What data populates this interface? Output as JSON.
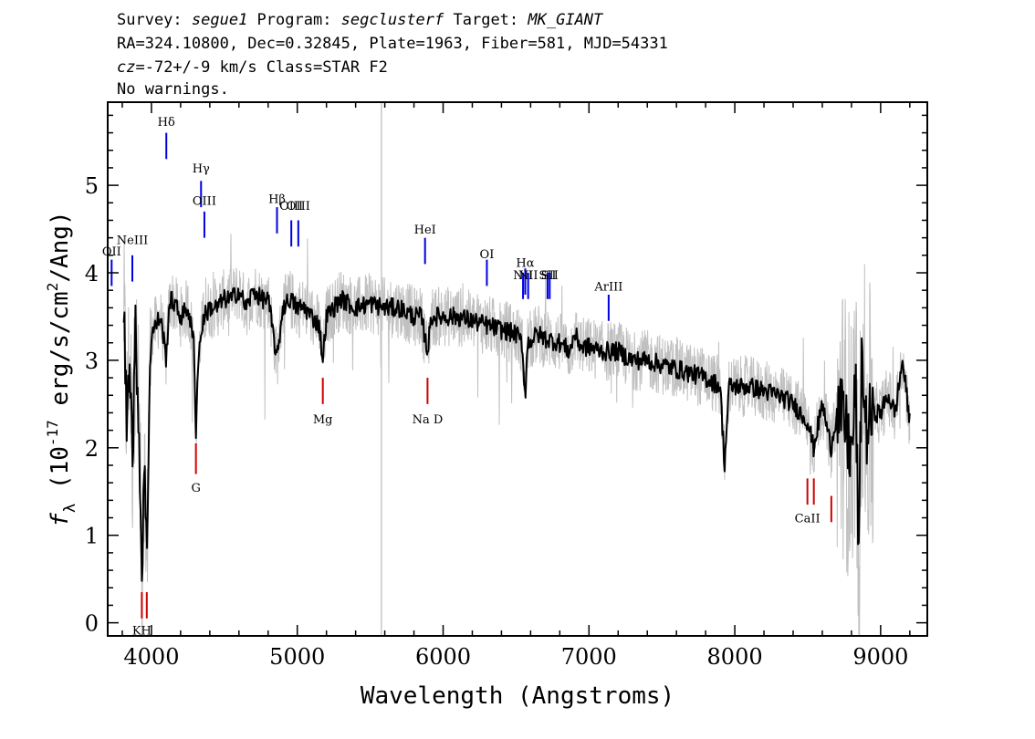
{
  "header": {
    "line1": {
      "survey_label": "Survey: ",
      "survey": "segue1",
      "program_label": " Program: ",
      "program": "segclusterf",
      "target_label": " Target: ",
      "target": "MK_GIANT"
    },
    "line2": "RA=324.10800, Dec=0.32845, Plate=1963, Fiber=581, MJD=54331",
    "line3": {
      "cz_label": "cz",
      "cz_value": "=-72+/-9",
      "rest": " km/s Class=STAR F2"
    },
    "line4": "No warnings."
  },
  "chart_data": {
    "type": "line",
    "xlabel": "Wavelength (Angstroms)",
    "ylabel_parts": {
      "symbol": "f",
      "sub": "λ",
      "open": " (10",
      "exp": "-17",
      "mid": " erg/s/cm",
      "exp2": "2",
      "close": "/Ang)"
    },
    "xlim": [
      3700,
      9320
    ],
    "ylim": [
      -0.15,
      5.95
    ],
    "x_ticks": [
      4000,
      5000,
      6000,
      7000,
      8000,
      9000
    ],
    "y_ticks": [
      0,
      1,
      2,
      3,
      4,
      5
    ],
    "sky_line_x": 5577,
    "smoothed_series": [
      [
        3810,
        3.6
      ],
      [
        3830,
        2.3
      ],
      [
        3850,
        3.2
      ],
      [
        3870,
        1.9
      ],
      [
        3890,
        3.3
      ],
      [
        3910,
        2.5
      ],
      [
        3935,
        0.5
      ],
      [
        3950,
        1.9
      ],
      [
        3968,
        0.7
      ],
      [
        3985,
        2.6
      ],
      [
        4000,
        3.3
      ],
      [
        4030,
        3.4
      ],
      [
        4060,
        3.5
      ],
      [
        4080,
        3.3
      ],
      [
        4101,
        3.0
      ],
      [
        4120,
        3.6
      ],
      [
        4140,
        3.7
      ],
      [
        4170,
        3.6
      ],
      [
        4200,
        3.5
      ],
      [
        4250,
        3.6
      ],
      [
        4290,
        3.2
      ],
      [
        4305,
        2.2
      ],
      [
        4320,
        3.0
      ],
      [
        4340,
        3.3
      ],
      [
        4360,
        3.5
      ],
      [
        4400,
        3.6
      ],
      [
        4450,
        3.6
      ],
      [
        4500,
        3.7
      ],
      [
        4550,
        3.7
      ],
      [
        4600,
        3.8
      ],
      [
        4650,
        3.6
      ],
      [
        4700,
        3.8
      ],
      [
        4750,
        3.7
      ],
      [
        4800,
        3.7
      ],
      [
        4861,
        3.0
      ],
      [
        4900,
        3.6
      ],
      [
        4950,
        3.7
      ],
      [
        5000,
        3.6
      ],
      [
        5050,
        3.6
      ],
      [
        5100,
        3.5
      ],
      [
        5150,
        3.4
      ],
      [
        5175,
        3.0
      ],
      [
        5200,
        3.5
      ],
      [
        5300,
        3.7
      ],
      [
        5400,
        3.6
      ],
      [
        5500,
        3.65
      ],
      [
        5600,
        3.6
      ],
      [
        5700,
        3.6
      ],
      [
        5800,
        3.5
      ],
      [
        5850,
        3.5
      ],
      [
        5893,
        3.1
      ],
      [
        5920,
        3.5
      ],
      [
        6000,
        3.5
      ],
      [
        6100,
        3.5
      ],
      [
        6200,
        3.45
      ],
      [
        6300,
        3.4
      ],
      [
        6400,
        3.35
      ],
      [
        6500,
        3.3
      ],
      [
        6540,
        3.2
      ],
      [
        6563,
        2.6
      ],
      [
        6580,
        3.2
      ],
      [
        6650,
        3.3
      ],
      [
        6700,
        3.25
      ],
      [
        6800,
        3.2
      ],
      [
        6870,
        3.1
      ],
      [
        6900,
        3.3
      ],
      [
        6950,
        3.15
      ],
      [
        7000,
        3.15
      ],
      [
        7100,
        3.1
      ],
      [
        7200,
        3.1
      ],
      [
        7300,
        3.0
      ],
      [
        7400,
        3.0
      ],
      [
        7500,
        2.95
      ],
      [
        7600,
        2.9
      ],
      [
        7700,
        2.85
      ],
      [
        7800,
        2.8
      ],
      [
        7900,
        2.7
      ],
      [
        7930,
        1.8
      ],
      [
        7960,
        2.7
      ],
      [
        8000,
        2.7
      ],
      [
        8100,
        2.7
      ],
      [
        8200,
        2.65
      ],
      [
        8300,
        2.6
      ],
      [
        8400,
        2.5
      ],
      [
        8500,
        2.3
      ],
      [
        8540,
        2.0
      ],
      [
        8600,
        2.5
      ],
      [
        8660,
        2.0
      ],
      [
        8700,
        2.4
      ],
      [
        8750,
        2.3
      ],
      [
        8800,
        1.9
      ],
      [
        8830,
        2.7
      ],
      [
        8850,
        0.6
      ],
      [
        8870,
        3.1
      ],
      [
        8900,
        2.2
      ],
      [
        8950,
        2.4
      ],
      [
        9000,
        2.4
      ],
      [
        9050,
        2.6
      ],
      [
        9100,
        2.4
      ],
      [
        9150,
        3.0
      ],
      [
        9200,
        2.3
      ]
    ],
    "emission_lines": [
      {
        "label": "OII",
        "x": 3727,
        "y0": 3.85,
        "y1": 4.15,
        "label_y": 4.25
      },
      {
        "label": "NeIII",
        "x": 3869,
        "y0": 3.9,
        "y1": 4.2,
        "label_y": 4.38
      },
      {
        "label": "Hδ",
        "x": 4102,
        "y0": 5.3,
        "y1": 5.6,
        "label_y": 5.73
      },
      {
        "label": "Hγ",
        "x": 4340,
        "y0": 4.75,
        "y1": 5.05,
        "label_y": 5.2
      },
      {
        "label": "OIII",
        "x": 4363,
        "y0": 4.4,
        "y1": 4.7,
        "label_y": 4.83
      },
      {
        "label": "Hβ",
        "x": 4861,
        "y0": 4.45,
        "y1": 4.75,
        "label_y": 4.85
      },
      {
        "label": "OIII",
        "x": 4959,
        "y0": 4.3,
        "y1": 4.6,
        "label_y": 4.77
      },
      {
        "label": "OIII",
        "x": 5007,
        "y0": 4.3,
        "y1": 4.6,
        "label_y": 4.77
      },
      {
        "label": "HeI",
        "x": 5876,
        "y0": 4.1,
        "y1": 4.4,
        "label_y": 4.5
      },
      {
        "label": "OI",
        "x": 6300,
        "y0": 3.85,
        "y1": 4.15,
        "label_y": 4.22
      },
      {
        "label": "NII",
        "x": 6548,
        "y0": 3.7,
        "y1": 4.0,
        "label_y": 3.98
      },
      {
        "label": "Hα",
        "x": 6563,
        "y0": 3.75,
        "y1": 4.05,
        "label_y": 4.12
      },
      {
        "label": "NII",
        "x": 6583,
        "y0": 3.7,
        "y1": 4.0,
        "label_y": 3.98
      },
      {
        "label": "SII",
        "x": 6716,
        "y0": 3.7,
        "y1": 4.0,
        "label_y": 3.98
      },
      {
        "label": "SII",
        "x": 6731,
        "y0": 3.7,
        "y1": 4.0,
        "label_y": 3.98
      },
      {
        "label": "ArIII",
        "x": 7135,
        "y0": 3.45,
        "y1": 3.75,
        "label_y": 3.85
      }
    ],
    "absorption_lines": [
      {
        "label": "KH",
        "x": 3934,
        "y0": 0.05,
        "y1": 0.35,
        "label_y": -0.08
      },
      {
        "label": "",
        "x": 3968,
        "y0": 0.05,
        "y1": 0.35,
        "label_y": -0.08
      },
      {
        "label": "G",
        "x": 4305,
        "y0": 1.7,
        "y1": 2.05,
        "label_y": 1.55
      },
      {
        "label": "Mg",
        "x": 5175,
        "y0": 2.5,
        "y1": 2.8,
        "label_y": 2.33
      },
      {
        "label": "Na D",
        "x": 5893,
        "y0": 2.5,
        "y1": 2.8,
        "label_y": 2.33
      },
      {
        "label": "CaII",
        "x": 8498,
        "y0": 1.35,
        "y1": 1.65,
        "label_y": 1.2
      },
      {
        "label": "",
        "x": 8542,
        "y0": 1.35,
        "y1": 1.65,
        "label_y": 1.2
      },
      {
        "label": "",
        "x": 8662,
        "y0": 1.15,
        "y1": 1.45,
        "label_y": 1.2
      }
    ],
    "colors": {
      "flux": "#000000",
      "noise": "#c0c0c0",
      "emission": "#0000e0",
      "absorption": "#d00000",
      "sky_line": "#c8c8c8"
    }
  }
}
